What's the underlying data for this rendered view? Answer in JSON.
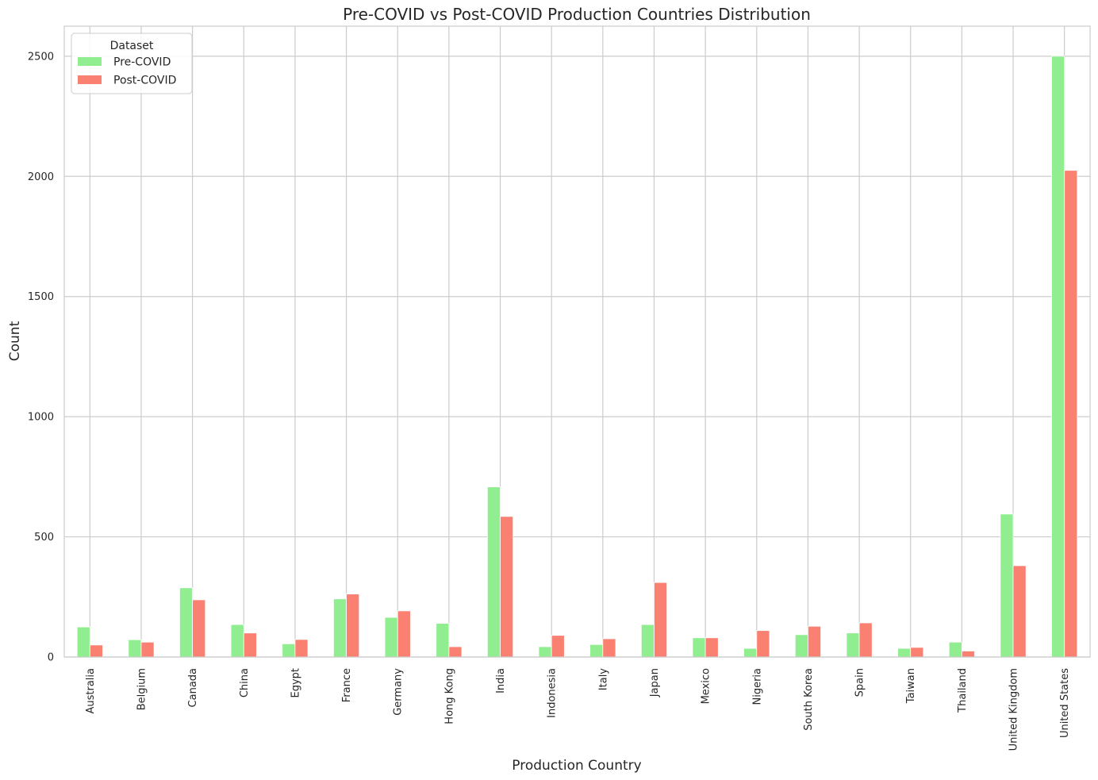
{
  "chart_data": {
    "type": "bar",
    "title": "Pre-COVID vs Post-COVID Production Countries Distribution",
    "xlabel": "Production Country",
    "ylabel": "Count",
    "ylim": [
      0,
      2625
    ],
    "yticks": [
      0,
      500,
      1000,
      1500,
      2000,
      2500
    ],
    "grid": true,
    "legend": {
      "title": "Dataset",
      "placement": "top-left"
    },
    "categories": [
      "Australia",
      "Belgium",
      "Canada",
      "China",
      "Egypt",
      "France",
      "Germany",
      "Hong Kong",
      "India",
      "Indonesia",
      "Italy",
      "Japan",
      "Mexico",
      "Nigeria",
      "South Korea",
      "Spain",
      "Taiwan",
      "Thailand",
      "United Kingdom",
      "United States"
    ],
    "series": [
      {
        "name": "Pre-COVID",
        "color": "#90ee90",
        "values": [
          125,
          72,
          288,
          135,
          55,
          242,
          165,
          140,
          708,
          43,
          52,
          135,
          80,
          36,
          93,
          100,
          36,
          62,
          595,
          2500
        ]
      },
      {
        "name": "Post-COVID",
        "color": "#fa8072",
        "values": [
          50,
          62,
          238,
          100,
          73,
          262,
          192,
          43,
          585,
          90,
          76,
          310,
          80,
          110,
          128,
          142,
          40,
          25,
          380,
          2025
        ]
      }
    ]
  }
}
